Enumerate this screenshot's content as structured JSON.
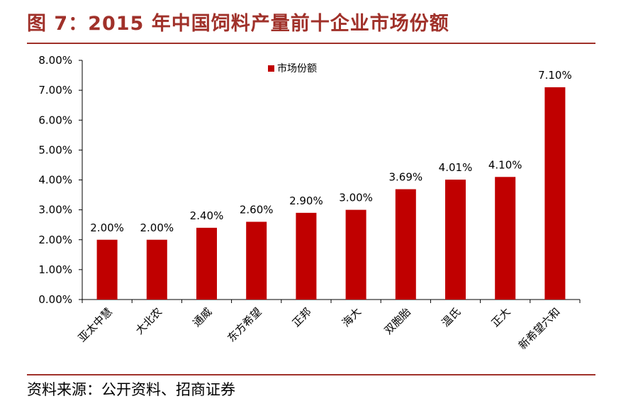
{
  "page": {
    "title": "图 7：2015 年中国饲料产量前十企业市场份额",
    "source": "资料来源：公开资料、招商证券"
  },
  "colors": {
    "bar": "#c00000",
    "title": "#a0312a"
  },
  "chart_data": {
    "type": "bar",
    "categories": [
      "亚太中慧",
      "大北农",
      "通威",
      "东方希望",
      "正邦",
      "海大",
      "双胞胎",
      "温氏",
      "正大",
      "新希望六和"
    ],
    "series": [
      {
        "name": "市场份额",
        "values": [
          2.0,
          2.0,
          2.4,
          2.6,
          2.9,
          3.0,
          3.69,
          4.01,
          4.1,
          7.1
        ],
        "labels": [
          "2.00%",
          "2.00%",
          "2.40%",
          "2.60%",
          "2.90%",
          "3.00%",
          "3.69%",
          "4.01%",
          "4.10%",
          "7.10%"
        ]
      }
    ],
    "ylim": [
      0,
      8
    ],
    "yticks": [
      "0.00%",
      "1.00%",
      "2.00%",
      "3.00%",
      "4.00%",
      "5.00%",
      "6.00%",
      "7.00%",
      "8.00%"
    ],
    "legend": "top-center",
    "grid": false
  }
}
